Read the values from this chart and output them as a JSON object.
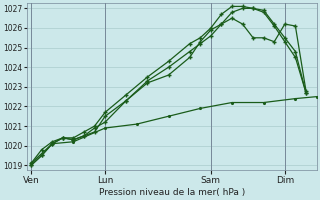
{
  "xlabel": "Pression niveau de la mer( hPa )",
  "bg_color": "#cce8ea",
  "grid_color": "#aacccc",
  "line_color": "#1a5c1a",
  "ylim": [
    1018.75,
    1027.25
  ],
  "yticks": [
    1019,
    1020,
    1021,
    1022,
    1023,
    1024,
    1025,
    1026,
    1027
  ],
  "day_labels": [
    "Ven",
    "Lun",
    "Sam",
    "Dim"
  ],
  "day_positions": [
    0,
    3.5,
    8.5,
    12.0
  ],
  "xlim": [
    -0.2,
    13.5
  ],
  "vlines": [
    0,
    3.5,
    8.5,
    12.0
  ],
  "series1_x": [
    0,
    0.5,
    1.0,
    1.5,
    2.0,
    2.5,
    3.0,
    3.5,
    4.5,
    5.5,
    6.5,
    7.5,
    8.0,
    8.5,
    9.0,
    9.5,
    10.0,
    10.5,
    11.0,
    11.5,
    12.0,
    12.5,
    13.0
  ],
  "series1_y": [
    1019.0,
    1019.5,
    1020.1,
    1020.4,
    1020.4,
    1020.7,
    1021.0,
    1021.7,
    1022.6,
    1023.5,
    1024.3,
    1025.2,
    1025.5,
    1026.0,
    1026.7,
    1027.1,
    1027.1,
    1027.0,
    1026.9,
    1026.2,
    1025.5,
    1024.8,
    1022.7
  ],
  "series2_x": [
    0,
    0.5,
    1.0,
    1.5,
    2.0,
    2.5,
    3.0,
    3.5,
    4.5,
    5.5,
    6.5,
    7.5,
    8.0,
    8.5,
    9.0,
    9.5,
    10.0,
    10.5,
    11.0,
    11.5,
    12.0,
    12.5,
    13.0
  ],
  "series2_y": [
    1019.0,
    1019.5,
    1020.1,
    1020.4,
    1020.3,
    1020.5,
    1020.7,
    1021.5,
    1022.3,
    1023.3,
    1024.0,
    1024.8,
    1025.2,
    1025.6,
    1026.2,
    1026.8,
    1027.0,
    1027.0,
    1026.8,
    1026.1,
    1025.3,
    1024.5,
    1022.7
  ],
  "series3_x": [
    0,
    0.5,
    1.0,
    1.5,
    2.0,
    2.5,
    3.0,
    3.5,
    4.5,
    5.5,
    6.5,
    7.5,
    8.0,
    8.5,
    9.0,
    9.5,
    10.0,
    10.5,
    11.0,
    11.5,
    12.0,
    12.5,
    13.0
  ],
  "series3_y": [
    1019.1,
    1019.8,
    1020.2,
    1020.4,
    1020.3,
    1020.5,
    1020.9,
    1021.2,
    1022.3,
    1023.2,
    1023.6,
    1024.5,
    1025.3,
    1025.9,
    1026.2,
    1026.5,
    1026.2,
    1025.5,
    1025.5,
    1025.3,
    1026.2,
    1026.1,
    1022.8
  ],
  "series4_x": [
    0,
    1.0,
    2.0,
    3.5,
    5.0,
    6.5,
    8.0,
    9.5,
    11.0,
    12.5,
    13.5
  ],
  "series4_y": [
    1019.1,
    1020.1,
    1020.2,
    1020.9,
    1021.1,
    1021.5,
    1021.9,
    1022.2,
    1022.2,
    1022.4,
    1022.5
  ]
}
